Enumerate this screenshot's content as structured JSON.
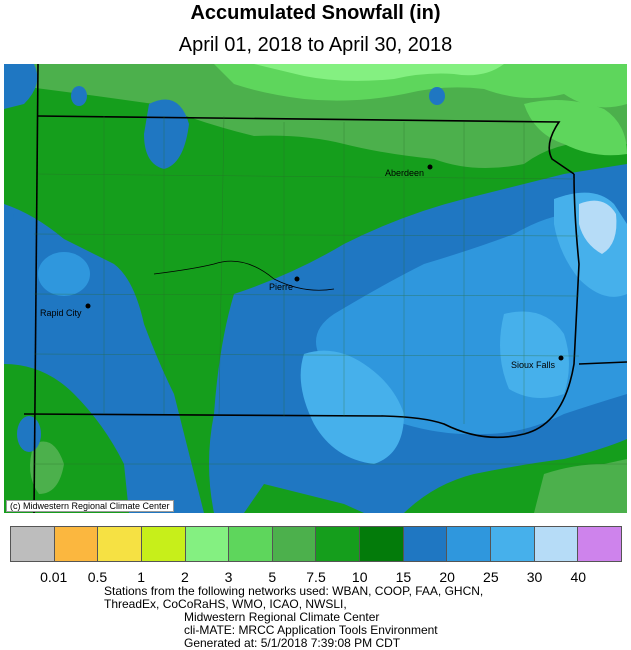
{
  "title": "Accumulated Snowfall (in)",
  "subtitle": "April 01, 2018 to April 30, 2018",
  "credit": "(c) Midwestern Regional Climate Center",
  "cities": [
    {
      "name": "Aberdeen"
    },
    {
      "name": "Pierre"
    },
    {
      "name": "Rapid City"
    },
    {
      "name": "Sioux Falls"
    }
  ],
  "legend": {
    "colors": [
      "#bdbdbd",
      "#fbb73f",
      "#f6e143",
      "#c7ef1a",
      "#84f081",
      "#5ed65c",
      "#4cb04c",
      "#159e1c",
      "#037b0a",
      "#1f77c2",
      "#2f97dd",
      "#46b0eb",
      "#b6dcf7",
      "#ce83ec"
    ],
    "tick_labels": [
      "0.01",
      "0.5",
      "1",
      "2",
      "3",
      "5",
      "7.5",
      "10",
      "15",
      "20",
      "25",
      "30",
      "40"
    ]
  },
  "footer": {
    "line1": "Stations from the following networks used: WBAN, COOP, FAA, GHCN,",
    "line2": "ThreadEx, CoCoRaHS, WMO, ICAO, NWSLI,",
    "line3": "Midwestern Regional Climate Center",
    "line4": "cli-MATE: MRCC Application Tools Environment",
    "line5": "Generated at: 5/1/2018 7:39:08 PM CDT"
  }
}
